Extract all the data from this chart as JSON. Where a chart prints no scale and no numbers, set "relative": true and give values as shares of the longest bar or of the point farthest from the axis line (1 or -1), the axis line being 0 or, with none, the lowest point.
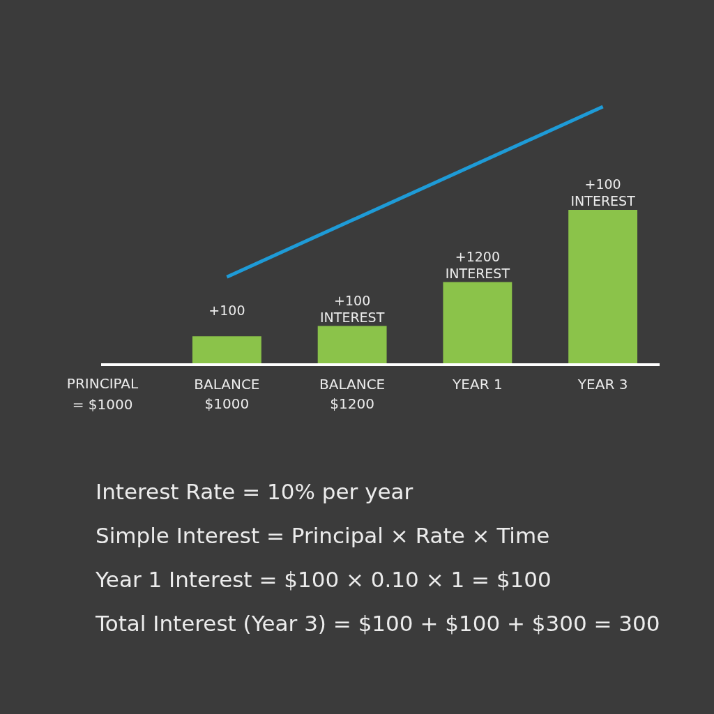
{
  "chart_data": {
    "type": "bar",
    "relative": true,
    "categories": [
      "BALANCE\n$1000",
      "BALANCE\n$1200",
      "YEAR 1",
      "YEAR 3"
    ],
    "series": [
      {
        "color": "#8bc34a",
        "values": [
          0.11,
          0.15,
          0.32,
          0.6
        ]
      },
      {
        "type": "line",
        "color": "#1e9bd7",
        "values": [
          0.34,
          null,
          null,
          1
        ]
      }
    ],
    "annotations": [
      "PRINCIPAL\n= $1000",
      {
        "text": "+100",
        "x": "BALANCE\n$1000",
        "y": 0.11
      },
      {
        "text": "+100\nINTEREST",
        "x": "BALANCE\n$1200",
        "y": 0.15
      },
      {
        "text": "+1200\nINTEREST",
        "x": "YEAR 1",
        "y": 0.32
      },
      {
        "text": "+100\nINTEREST",
        "x": "YEAR 3",
        "y": 0.6
      },
      "Interest Rate = 10% per year",
      "Simple Interest = Principal × Rate × Time",
      "Year 1 Interest = $100 × 0.10 × 1 = $100",
      "Total Interest (Year 3) = $100 + $100 + $300 =  300"
    ]
  }
}
